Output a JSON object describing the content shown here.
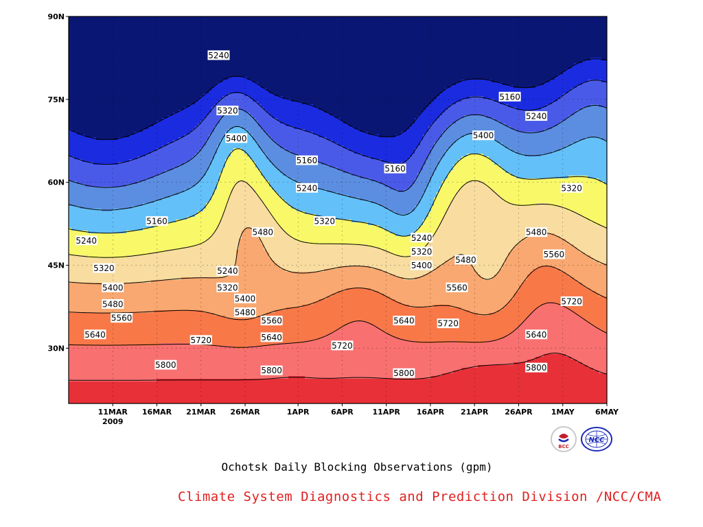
{
  "chart_data": {
    "type": "heatmap",
    "title": "Ochotsk Daily Blocking Observations (gpm)",
    "credit": "Climate System Diagnostics and Prediction Division /NCC/CMA",
    "year_label": "2009",
    "xlabel": "",
    "ylabel": "",
    "x_ticks": [
      "11MAR",
      "16MAR",
      "21MAR",
      "26MAR",
      "1APR",
      "6APR",
      "11APR",
      "16APR",
      "21APR",
      "26APR",
      "1MAY",
      "6MAY"
    ],
    "y_ticks": [
      "30N",
      "45N",
      "60N",
      "75N",
      "90N"
    ],
    "ylim": [
      20,
      90
    ],
    "xlim": [
      "2009-03-06",
      "2009-05-06"
    ],
    "levels": [
      5160,
      5240,
      5320,
      5400,
      5480,
      5560,
      5640,
      5720,
      5800,
      5880
    ],
    "level_colors": [
      "#0a1673",
      "#1a2be0",
      "#4a5ae8",
      "#5b8ee0",
      "#64c0f8",
      "#f8f868",
      "#f8dca0",
      "#f8a870",
      "#f87848",
      "#f87070",
      "#e83038"
    ],
    "contour_labels": [
      {
        "text": "5240",
        "date": "2009-03-23",
        "lat": 83
      },
      {
        "text": "5320",
        "date": "2009-03-24",
        "lat": 73
      },
      {
        "text": "5400",
        "date": "2009-03-25",
        "lat": 68
      },
      {
        "text": "5480",
        "date": "2009-03-28",
        "lat": 51
      },
      {
        "text": "5160",
        "date": "2009-04-02",
        "lat": 64
      },
      {
        "text": "5240",
        "date": "2009-04-02",
        "lat": 59
      },
      {
        "text": "5320",
        "date": "2009-04-04",
        "lat": 53
      },
      {
        "text": "5160",
        "date": "2009-04-12",
        "lat": 62.5
      },
      {
        "text": "5160",
        "date": "2009-04-25",
        "lat": 75.5
      },
      {
        "text": "5240",
        "date": "2009-04-28",
        "lat": 72
      },
      {
        "text": "5400",
        "date": "2009-04-22",
        "lat": 68.5
      },
      {
        "text": "5320",
        "date": "2009-05-02",
        "lat": 59
      },
      {
        "text": "5480",
        "date": "2009-04-28",
        "lat": 51
      },
      {
        "text": "5560",
        "date": "2009-04-30",
        "lat": 47
      },
      {
        "text": "5240",
        "date": "2009-04-15",
        "lat": 50
      },
      {
        "text": "5320",
        "date": "2009-04-15",
        "lat": 47.5
      },
      {
        "text": "5400",
        "date": "2009-04-15",
        "lat": 45
      },
      {
        "text": "5480",
        "date": "2009-04-20",
        "lat": 46
      },
      {
        "text": "5560",
        "date": "2009-04-19",
        "lat": 41
      },
      {
        "text": "5640",
        "date": "2009-04-13",
        "lat": 35
      },
      {
        "text": "5720",
        "date": "2009-04-18",
        "lat": 34.5
      },
      {
        "text": "5640",
        "date": "2009-04-28",
        "lat": 32.5
      },
      {
        "text": "5720",
        "date": "2009-05-02",
        "lat": 38.5
      },
      {
        "text": "5800",
        "date": "2009-04-28",
        "lat": 26.5
      },
      {
        "text": "5800",
        "date": "2009-04-13",
        "lat": 25.5
      },
      {
        "text": "5800",
        "date": "2009-03-29",
        "lat": 26
      },
      {
        "text": "5800",
        "date": "2009-03-17",
        "lat": 27
      },
      {
        "text": "5720",
        "date": "2009-03-21",
        "lat": 31.5
      },
      {
        "text": "5720",
        "date": "2009-04-06",
        "lat": 30.5
      },
      {
        "text": "5640",
        "date": "2009-03-29",
        "lat": 32
      },
      {
        "text": "5560",
        "date": "2009-03-29",
        "lat": 35
      },
      {
        "text": "5480",
        "date": "2009-03-26",
        "lat": 36.5
      },
      {
        "text": "5400",
        "date": "2009-03-26",
        "lat": 39
      },
      {
        "text": "5320",
        "date": "2009-03-24",
        "lat": 41
      },
      {
        "text": "5240",
        "date": "2009-03-24",
        "lat": 44
      },
      {
        "text": "5160",
        "date": "2009-03-16",
        "lat": 53
      },
      {
        "text": "5240",
        "date": "2009-03-08",
        "lat": 49.5
      },
      {
        "text": "5320",
        "date": "2009-03-10",
        "lat": 44.5
      },
      {
        "text": "5400",
        "date": "2009-03-11",
        "lat": 41
      },
      {
        "text": "5480",
        "date": "2009-03-11",
        "lat": 38
      },
      {
        "text": "5560",
        "date": "2009-03-12",
        "lat": 35.5
      },
      {
        "text": "5640",
        "date": "2009-03-09",
        "lat": 32.5
      }
    ]
  },
  "logos": [
    {
      "name": "BCC",
      "text": "BCC",
      "color": "#c0202a"
    },
    {
      "name": "NCC",
      "text": "NCC",
      "color": "#1a2ab8"
    }
  ]
}
